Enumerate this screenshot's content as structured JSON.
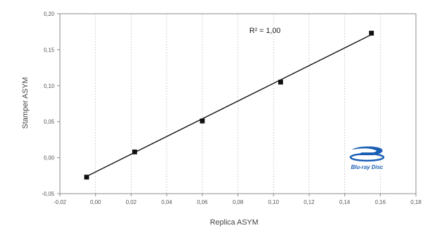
{
  "chart_data": {
    "type": "scatter",
    "title": "",
    "xlabel": "Replica ASYM",
    "ylabel": "Stamper ASYM",
    "xlim": [
      -0.02,
      0.18
    ],
    "ylim": [
      -0.05,
      0.2
    ],
    "x_ticks": [
      -0.02,
      0.0,
      0.02,
      0.04,
      0.06,
      0.08,
      0.1,
      0.12,
      0.14,
      0.16,
      0.18
    ],
    "y_ticks": [
      -0.05,
      0.0,
      0.05,
      0.1,
      0.15,
      0.2
    ],
    "x_tick_labels": [
      "-0,02",
      "0,00",
      "0,02",
      "0,04",
      "0,06",
      "0,08",
      "0,10",
      "0,12",
      "0,14",
      "0,16",
      "0,18"
    ],
    "y_tick_labels": [
      "-0,05",
      "0,00",
      "0,05",
      "0,10",
      "0,15",
      "0,20"
    ],
    "grid": "vertical",
    "points": [
      {
        "x": -0.005,
        "y": -0.027
      },
      {
        "x": 0.022,
        "y": 0.008
      },
      {
        "x": 0.06,
        "y": 0.051
      },
      {
        "x": 0.104,
        "y": 0.105
      },
      {
        "x": 0.155,
        "y": 0.173
      }
    ],
    "trendline": {
      "type": "linear",
      "from": [
        -0.005,
        -0.026
      ],
      "to": [
        0.155,
        0.171
      ]
    },
    "annotation": "R² = 1,00",
    "logo": {
      "name": "blu-ray-disc-logo",
      "text": "Blu-ray Disc",
      "color": "#1a5fb4"
    }
  }
}
